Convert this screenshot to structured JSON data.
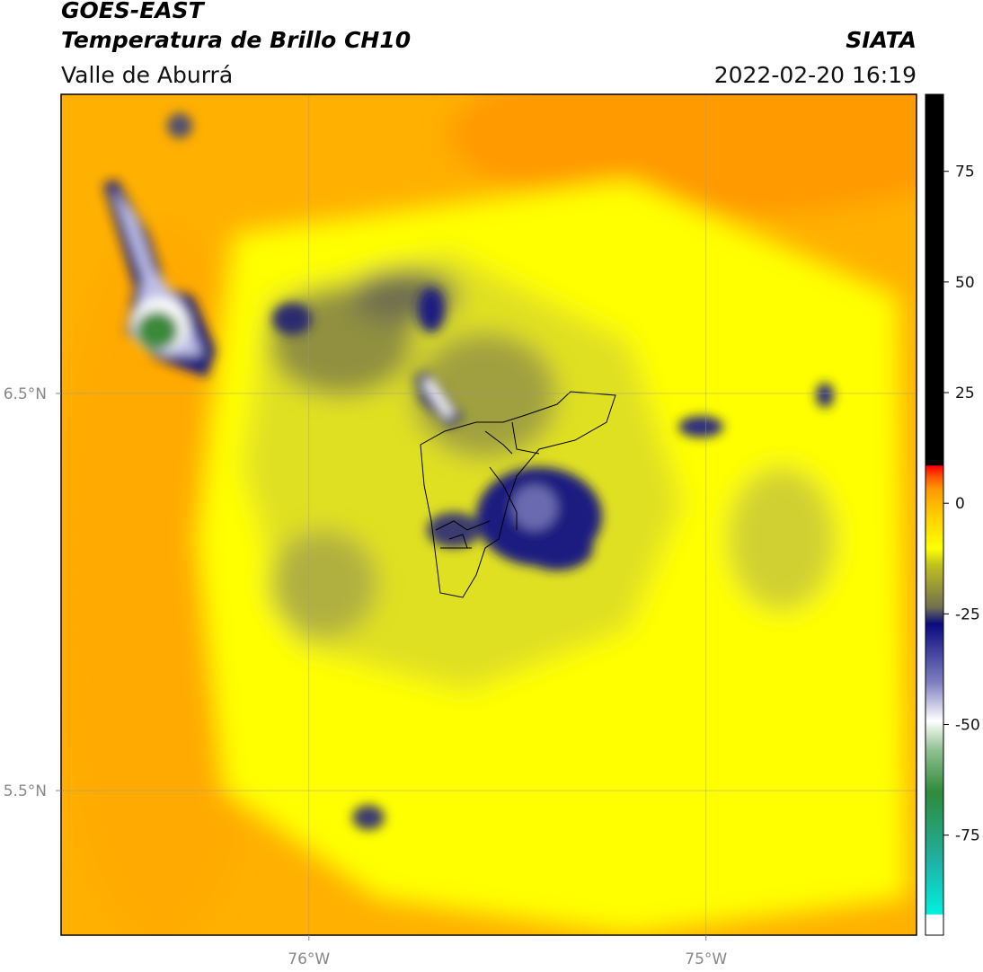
{
  "header": {
    "title": "GOES-EAST",
    "subtitle": "Temperatura de Brillo CH10",
    "source": "SIATA",
    "region": "Valle de Aburrá",
    "datetime": "2022-02-20 16:19"
  },
  "map": {
    "xlim": [
      -76.624,
      -74.47
    ],
    "ylim": [
      5.136,
      7.253
    ],
    "xticks": [
      {
        "value": -76,
        "label": "76°W"
      },
      {
        "value": -75,
        "label": "75°W"
      }
    ],
    "yticks": [
      {
        "value": 6.5,
        "label": "6.5°N"
      },
      {
        "value": 5.5,
        "label": "5.5°N"
      }
    ],
    "grid": true
  },
  "colorbar": {
    "lim": [
      -97.6,
      92.4
    ],
    "ticks": [
      75,
      50,
      25,
      0,
      -25,
      -50,
      -75
    ]
  }
}
